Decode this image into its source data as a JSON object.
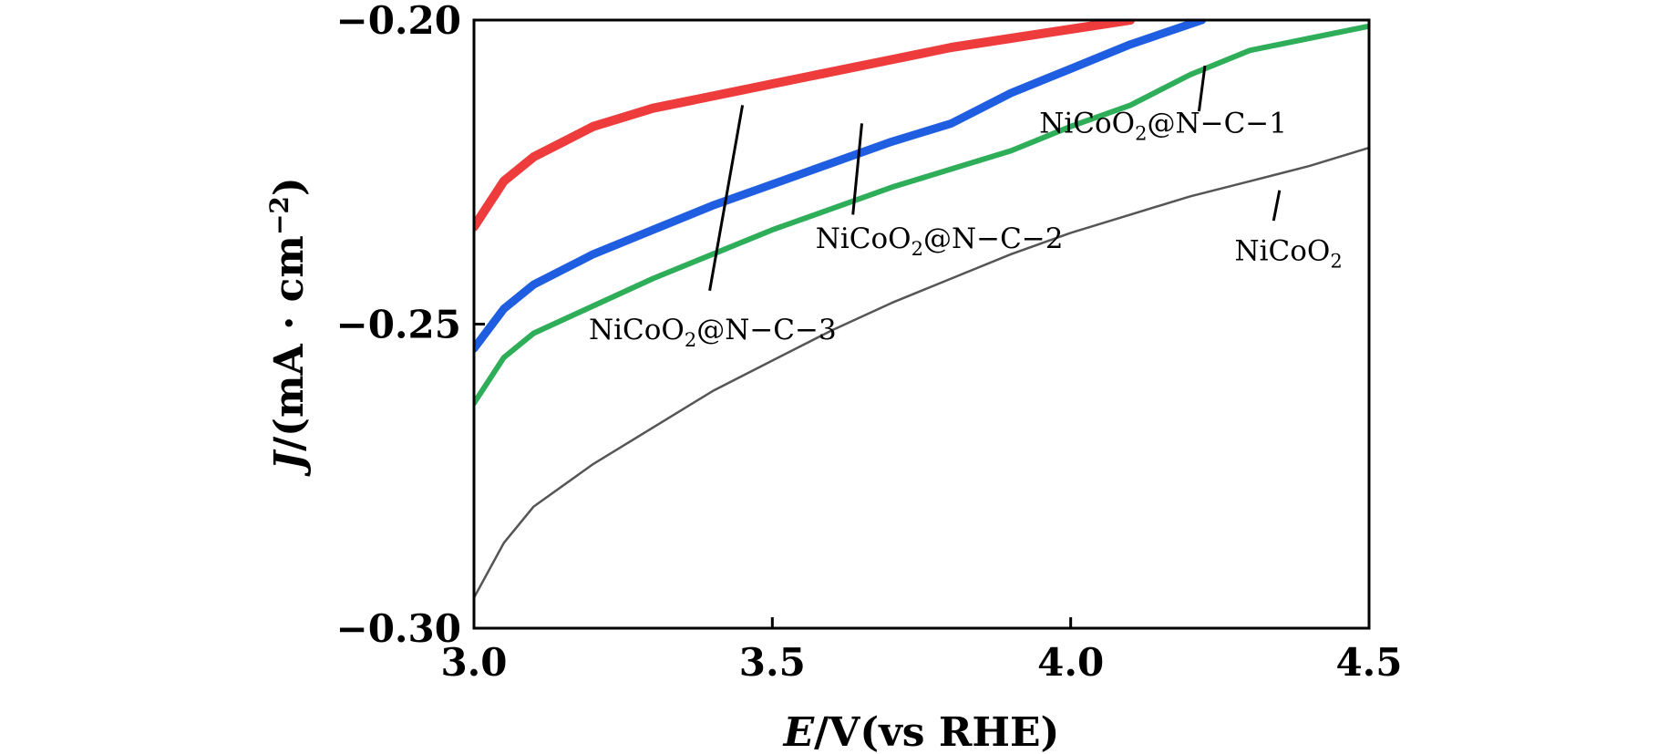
{
  "chart_data": {
    "type": "line",
    "title": "",
    "xlabel": "E/V(vs RHE)",
    "xlabel_italic": "E",
    "xlabel_rest": "/V(vs RHE)",
    "ylabel": "J/(mA·cm⁻²)",
    "ylabel_italic": "J",
    "ylabel_rest": "/(mA · cm",
    "ylabel_exp": "−2",
    "ylabel_close": ")",
    "xlim": [
      3.0,
      4.5
    ],
    "ylim": [
      -0.3,
      -0.2
    ],
    "x_ticks": [
      "3.0",
      "3.5",
      "4.0",
      "4.5"
    ],
    "y_ticks": [
      "−0.20",
      "−0.25",
      "−0.30"
    ],
    "grid": false,
    "legend": "none (direct annotations)",
    "series": [
      {
        "name": "NiCoO2@N-C-3",
        "color": "#ee3b3b",
        "x": [
          3.0,
          3.05,
          3.1,
          3.15,
          3.2,
          3.3,
          3.4,
          3.5,
          3.6,
          3.7,
          3.8,
          3.9,
          4.0,
          4.1
        ],
        "y": [
          -0.234,
          -0.2265,
          -0.2225,
          -0.22,
          -0.2175,
          -0.2145,
          -0.2125,
          -0.2105,
          -0.2085,
          -0.2065,
          -0.2045,
          -0.203,
          -0.2015,
          -0.2
        ]
      },
      {
        "name": "NiCoO2@N-C-2",
        "color": "#1f5ee0",
        "x": [
          3.0,
          3.05,
          3.1,
          3.2,
          3.3,
          3.4,
          3.5,
          3.6,
          3.7,
          3.8,
          3.9,
          4.0,
          4.1,
          4.22
        ],
        "y": [
          -0.254,
          -0.2475,
          -0.2435,
          -0.2385,
          -0.2345,
          -0.2305,
          -0.227,
          -0.2235,
          -0.22,
          -0.217,
          -0.212,
          -0.208,
          -0.204,
          -0.2
        ]
      },
      {
        "name": "NiCoO2@N-C-1",
        "color": "#2fae5a",
        "x": [
          3.0,
          3.05,
          3.1,
          3.2,
          3.3,
          3.4,
          3.5,
          3.6,
          3.7,
          3.8,
          3.9,
          4.0,
          4.1,
          4.2,
          4.3,
          4.4,
          4.5
        ],
        "y": [
          -0.263,
          -0.2555,
          -0.2515,
          -0.247,
          -0.2425,
          -0.2385,
          -0.2345,
          -0.231,
          -0.2275,
          -0.2245,
          -0.2215,
          -0.2175,
          -0.214,
          -0.209,
          -0.205,
          -0.203,
          -0.201
        ]
      },
      {
        "name": "NiCoO2",
        "color": "#555555",
        "x": [
          3.0,
          3.05,
          3.1,
          3.2,
          3.3,
          3.4,
          3.5,
          3.6,
          3.7,
          3.8,
          3.9,
          4.0,
          4.1,
          4.2,
          4.3,
          4.4,
          4.5
        ],
        "y": [
          -0.295,
          -0.286,
          -0.28,
          -0.273,
          -0.267,
          -0.261,
          -0.256,
          -0.251,
          -0.2465,
          -0.2425,
          -0.2385,
          -0.235,
          -0.232,
          -0.229,
          -0.2265,
          -0.224,
          -0.221
        ]
      }
    ],
    "annotations": [
      {
        "series": "NiCoO2@N-C-1",
        "base": "NiCoO",
        "sub": "2",
        "suffix": "@N−C−1",
        "label_x": 4.155,
        "label_y": -0.2185,
        "line": [
          [
            4.225,
            -0.2075
          ],
          [
            4.215,
            -0.215
          ]
        ]
      },
      {
        "series": "NiCoO2@N-C-2",
        "base": "NiCoO",
        "sub": "2",
        "suffix": "@N−C−2",
        "label_x": 3.78,
        "label_y": -0.2375,
        "line": [
          [
            3.65,
            -0.217
          ],
          [
            3.635,
            -0.232
          ]
        ]
      },
      {
        "series": "NiCoO2@N-C-3",
        "base": "NiCoO",
        "sub": "2",
        "suffix": "@N−C−3",
        "label_x": 3.4,
        "label_y": -0.2525,
        "line": [
          [
            3.45,
            -0.214
          ],
          [
            3.395,
            -0.2445
          ]
        ]
      },
      {
        "series": "NiCoO2",
        "base": "NiCoO",
        "sub": "2",
        "suffix": "",
        "label_x": 4.365,
        "label_y": -0.2395,
        "line": [
          [
            4.35,
            -0.228
          ],
          [
            4.34,
            -0.233
          ]
        ]
      }
    ]
  }
}
